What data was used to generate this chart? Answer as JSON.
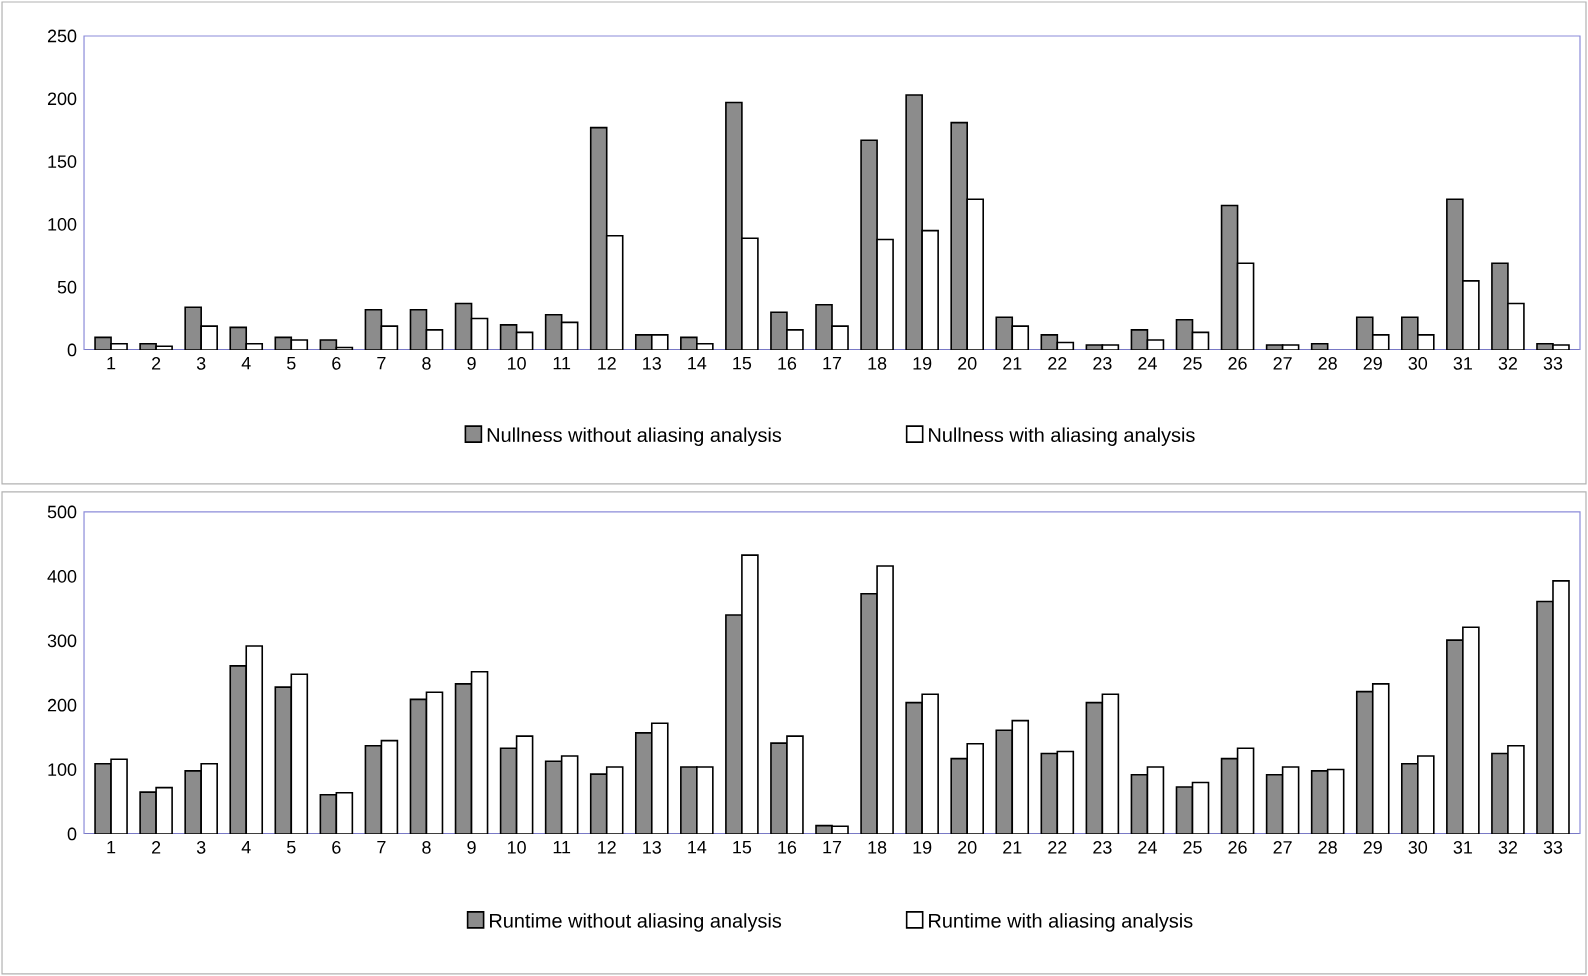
{
  "chart_data": [
    {
      "type": "bar",
      "categories": [
        "1",
        "2",
        "3",
        "4",
        "5",
        "6",
        "7",
        "8",
        "9",
        "10",
        "11",
        "12",
        "13",
        "14",
        "15",
        "16",
        "17",
        "18",
        "19",
        "20",
        "21",
        "22",
        "23",
        "24",
        "25",
        "26",
        "27",
        "28",
        "29",
        "30",
        "31",
        "32",
        "33"
      ],
      "series": [
        {
          "name": "Nullness without aliasing analysis",
          "color": "#8c8c8c",
          "values": [
            10,
            5,
            34,
            18,
            10,
            8,
            32,
            32,
            37,
            20,
            28,
            177,
            12,
            10,
            197,
            30,
            36,
            167,
            203,
            181,
            26,
            12,
            4,
            16,
            24,
            115,
            4,
            5,
            26,
            26,
            120,
            69,
            5
          ]
        },
        {
          "name": "Nullness with aliasing analysis",
          "color": "#ffffff",
          "values": [
            5,
            3,
            19,
            5,
            8,
            2,
            19,
            16,
            25,
            14,
            22,
            91,
            12,
            5,
            89,
            16,
            19,
            88,
            95,
            120,
            19,
            6,
            4,
            8,
            14,
            69,
            4,
            null,
            12,
            12,
            55,
            37,
            4
          ]
        }
      ],
      "ylim": [
        0,
        250
      ],
      "yticks": [
        0,
        50,
        100,
        150,
        200,
        250
      ],
      "legend": "bottom",
      "grid": false
    },
    {
      "type": "bar",
      "categories": [
        "1",
        "2",
        "3",
        "4",
        "5",
        "6",
        "7",
        "8",
        "9",
        "10",
        "11",
        "12",
        "13",
        "14",
        "15",
        "16",
        "17",
        "18",
        "19",
        "20",
        "21",
        "22",
        "23",
        "24",
        "25",
        "26",
        "27",
        "28",
        "29",
        "30",
        "31",
        "32",
        "33"
      ],
      "series": [
        {
          "name": "Runtime without aliasing analysis",
          "color": "#8c8c8c",
          "values": [
            109,
            65,
            98,
            261,
            228,
            61,
            137,
            209,
            233,
            133,
            113,
            93,
            157,
            104,
            340,
            141,
            13,
            373,
            204,
            117,
            161,
            125,
            204,
            92,
            73,
            117,
            92,
            98,
            221,
            109,
            301,
            125,
            361
          ]
        },
        {
          "name": "Runtime with aliasing analysis",
          "color": "#ffffff",
          "values": [
            116,
            72,
            109,
            292,
            248,
            64,
            145,
            220,
            252,
            152,
            121,
            104,
            172,
            104,
            433,
            152,
            12,
            416,
            217,
            140,
            176,
            128,
            217,
            104,
            80,
            133,
            104,
            100,
            233,
            121,
            321,
            137,
            393
          ]
        }
      ],
      "ylim": [
        0,
        500
      ],
      "yticks": [
        0,
        100,
        200,
        300,
        400,
        500
      ],
      "legend": "bottom",
      "grid": false
    }
  ]
}
